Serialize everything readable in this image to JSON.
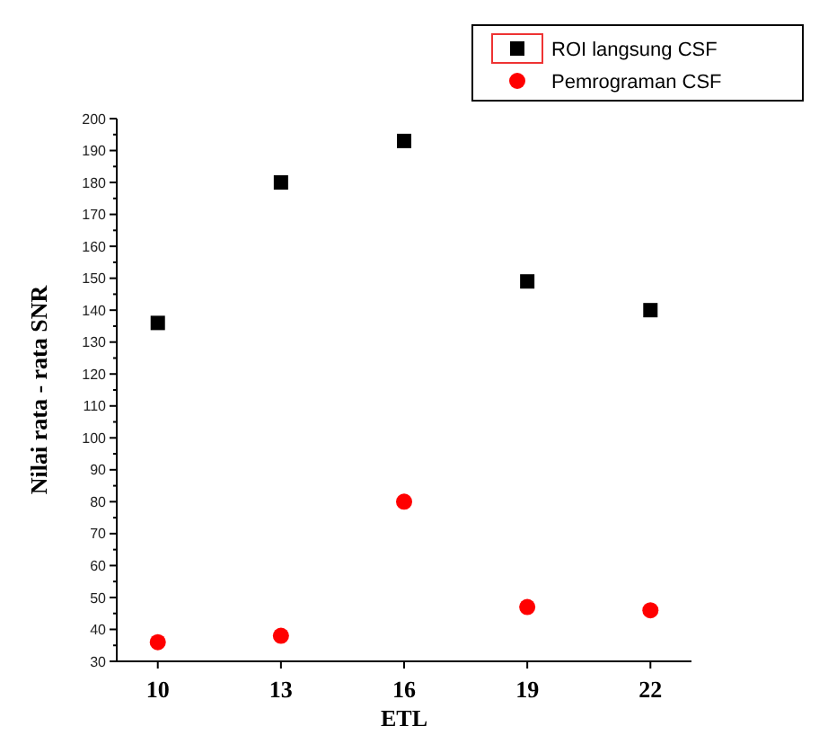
{
  "chart_data": {
    "type": "scatter",
    "xlabel": "ETL",
    "ylabel": "Nilai rata - rata SNR",
    "x": [
      10,
      13,
      16,
      19,
      22
    ],
    "xlim": [
      9,
      23
    ],
    "xticks": [
      10,
      13,
      16,
      19,
      22
    ],
    "ylim": [
      30,
      200
    ],
    "yticks": [
      30,
      40,
      50,
      60,
      70,
      80,
      90,
      100,
      110,
      120,
      130,
      140,
      150,
      160,
      170,
      180,
      190,
      200
    ],
    "legend": "top right",
    "grid": false,
    "series": [
      {
        "name": "ROI langsung CSF",
        "color": "#000000",
        "marker": "square",
        "values": [
          136,
          180,
          193,
          149,
          140
        ]
      },
      {
        "name": "Pemrograman CSF",
        "color": "#ff0000",
        "marker": "circle",
        "values": [
          36,
          38,
          80,
          47,
          46
        ]
      }
    ]
  }
}
